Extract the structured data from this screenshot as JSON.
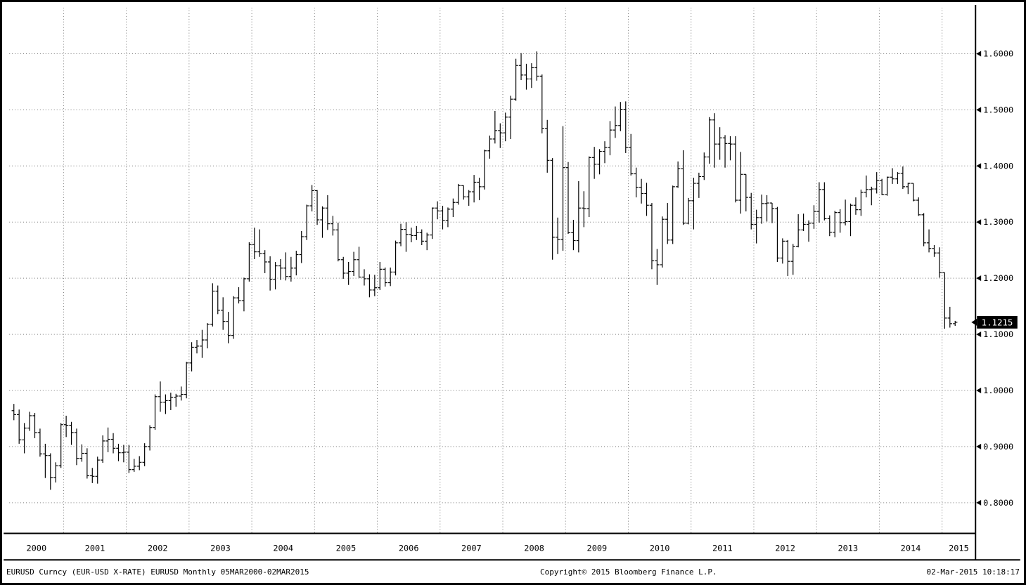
{
  "window": {
    "background": "#ffffff",
    "border_color": "#000000",
    "bar_color": "#000000",
    "grid_color": "#777777",
    "tag_bg": "#000000",
    "tag_fg": "#ffffff"
  },
  "footer": {
    "left": "EURUSD Curncy (EUR-USD X-RATE) EURUSD  Monthly 05MAR2000-02MAR2015",
    "center": "Copyright© 2015 Bloomberg Finance L.P.",
    "right": "02-Mar-2015 10:18:17"
  },
  "chart_data": {
    "type": "bar",
    "subtype": "ohlc-bar",
    "title": "EURUSD Curncy (EUR-USD X-RATE)",
    "frequency": "Monthly",
    "range_label": "05MAR2000-02MAR2015",
    "start": "2000-03",
    "end": "2015-03",
    "last_price": "1.1215",
    "last_price_value": 1.1215,
    "grid": "dotted",
    "legend_position": "none",
    "y_axis": {
      "side": "right",
      "ylim": [
        0.8,
        1.6
      ],
      "values": [
        1.6,
        1.5,
        1.4,
        1.3,
        1.2,
        1.1,
        1.0,
        0.9,
        0.8
      ],
      "labels": [
        "1.6000",
        "1.5000",
        "1.4000",
        "1.3000",
        "1.2000",
        "1.1000",
        "1.0000",
        "0.9000",
        "0.8000"
      ]
    },
    "x_axis": {
      "years": [
        "2000",
        "2001",
        "2002",
        "2003",
        "2004",
        "2005",
        "2006",
        "2007",
        "2008",
        "2009",
        "2010",
        "2011",
        "2012",
        "2013",
        "2014",
        "2015"
      ],
      "months_before_first_january_gridline": 10
    },
    "open_equals_previous_close": true,
    "first_open": 0.964,
    "high": [
      0.976,
      0.966,
      0.942,
      0.962,
      0.96,
      0.932,
      0.905,
      0.888,
      0.872,
      0.942,
      0.955,
      0.944,
      0.932,
      0.904,
      0.897,
      0.862,
      0.882,
      0.92,
      0.934,
      0.924,
      0.905,
      0.903,
      0.903,
      0.878,
      0.883,
      0.906,
      0.938,
      0.993,
      1.016,
      0.993,
      0.996,
      0.994,
      1.007,
      1.051,
      1.086,
      1.09,
      1.108,
      1.12,
      1.191,
      1.187,
      1.166,
      1.14,
      1.168,
      1.184,
      1.201,
      1.264,
      1.29,
      1.287,
      1.25,
      1.239,
      1.229,
      1.234,
      1.246,
      1.238,
      1.249,
      1.284,
      1.331,
      1.366,
      1.357,
      1.328,
      1.348,
      1.311,
      1.299,
      1.238,
      1.229,
      1.247,
      1.256,
      1.216,
      1.207,
      1.206,
      1.229,
      1.219,
      1.219,
      1.267,
      1.297,
      1.3,
      1.29,
      1.293,
      1.287,
      1.281,
      1.326,
      1.337,
      1.329,
      1.326,
      1.342,
      1.368,
      1.365,
      1.357,
      1.384,
      1.379,
      1.429,
      1.454,
      1.498,
      1.476,
      1.495,
      1.525,
      1.591,
      1.601,
      1.582,
      1.583,
      1.604,
      1.563,
      1.482,
      1.414,
      1.308,
      1.471,
      1.407,
      1.304,
      1.373,
      1.355,
      1.417,
      1.434,
      1.43,
      1.444,
      1.48,
      1.506,
      1.514,
      1.515,
      1.457,
      1.397,
      1.377,
      1.37,
      1.334,
      1.252,
      1.31,
      1.334,
      1.365,
      1.408,
      1.428,
      1.343,
      1.379,
      1.388,
      1.424,
      1.487,
      1.494,
      1.469,
      1.455,
      1.453,
      1.453,
      1.425,
      1.385,
      1.352,
      1.322,
      1.349,
      1.348,
      1.334,
      1.327,
      1.271,
      1.268,
      1.261,
      1.314,
      1.315,
      1.303,
      1.33,
      1.371,
      1.371,
      1.312,
      1.32,
      1.323,
      1.34,
      1.333,
      1.344,
      1.358,
      1.383,
      1.363,
      1.389,
      1.377,
      1.381,
      1.396,
      1.389,
      1.399,
      1.37,
      1.369,
      1.344,
      1.316,
      1.287,
      1.259,
      1.255,
      1.21,
      1.149,
      1.124
    ],
    "low": [
      0.947,
      0.905,
      0.888,
      0.928,
      0.915,
      0.882,
      0.844,
      0.823,
      0.836,
      0.862,
      0.917,
      0.903,
      0.867,
      0.873,
      0.843,
      0.835,
      0.834,
      0.871,
      0.89,
      0.888,
      0.874,
      0.872,
      0.853,
      0.855,
      0.858,
      0.865,
      0.893,
      0.93,
      0.962,
      0.958,
      0.965,
      0.971,
      0.982,
      0.986,
      1.034,
      1.066,
      1.058,
      1.075,
      1.114,
      1.136,
      1.108,
      1.084,
      1.092,
      1.155,
      1.141,
      1.194,
      1.234,
      1.238,
      1.209,
      1.178,
      1.18,
      1.197,
      1.196,
      1.194,
      1.205,
      1.227,
      1.268,
      1.319,
      1.295,
      1.272,
      1.286,
      1.276,
      1.23,
      1.199,
      1.188,
      1.204,
      1.201,
      1.187,
      1.166,
      1.168,
      1.179,
      1.185,
      1.186,
      1.205,
      1.257,
      1.247,
      1.264,
      1.268,
      1.259,
      1.25,
      1.27,
      1.305,
      1.287,
      1.291,
      1.309,
      1.331,
      1.34,
      1.329,
      1.335,
      1.339,
      1.358,
      1.413,
      1.44,
      1.432,
      1.444,
      1.448,
      1.516,
      1.553,
      1.536,
      1.539,
      1.552,
      1.458,
      1.388,
      1.233,
      1.243,
      1.249,
      1.279,
      1.25,
      1.246,
      1.291,
      1.309,
      1.377,
      1.385,
      1.405,
      1.419,
      1.45,
      1.462,
      1.423,
      1.383,
      1.344,
      1.333,
      1.311,
      1.216,
      1.188,
      1.219,
      1.261,
      1.261,
      1.361,
      1.295,
      1.296,
      1.287,
      1.343,
      1.375,
      1.404,
      1.397,
      1.411,
      1.397,
      1.41,
      1.335,
      1.315,
      1.319,
      1.287,
      1.262,
      1.297,
      1.301,
      1.298,
      1.229,
      1.226,
      1.204,
      1.206,
      1.255,
      1.284,
      1.265,
      1.288,
      1.299,
      1.303,
      1.275,
      1.273,
      1.281,
      1.294,
      1.275,
      1.313,
      1.311,
      1.344,
      1.33,
      1.351,
      1.348,
      1.347,
      1.368,
      1.368,
      1.359,
      1.35,
      1.337,
      1.311,
      1.257,
      1.246,
      1.238,
      1.201,
      1.11,
      1.112,
      1.115
    ],
    "close": [
      0.957,
      0.912,
      0.933,
      0.955,
      0.925,
      0.887,
      0.884,
      0.845,
      0.866,
      0.939,
      0.938,
      0.925,
      0.879,
      0.888,
      0.848,
      0.847,
      0.876,
      0.91,
      0.913,
      0.897,
      0.889,
      0.89,
      0.859,
      0.865,
      0.872,
      0.9,
      0.934,
      0.989,
      0.979,
      0.982,
      0.988,
      0.99,
      0.993,
      1.049,
      1.077,
      1.079,
      1.09,
      1.118,
      1.177,
      1.143,
      1.123,
      1.098,
      1.165,
      1.16,
      1.199,
      1.26,
      1.247,
      1.244,
      1.229,
      1.198,
      1.222,
      1.218,
      1.203,
      1.218,
      1.242,
      1.274,
      1.329,
      1.356,
      1.304,
      1.325,
      1.297,
      1.286,
      1.233,
      1.209,
      1.212,
      1.233,
      1.202,
      1.199,
      1.179,
      1.183,
      1.216,
      1.192,
      1.211,
      1.263,
      1.287,
      1.278,
      1.276,
      1.281,
      1.266,
      1.277,
      1.325,
      1.32,
      1.303,
      1.323,
      1.335,
      1.365,
      1.345,
      1.354,
      1.371,
      1.363,
      1.427,
      1.448,
      1.463,
      1.459,
      1.487,
      1.519,
      1.579,
      1.562,
      1.555,
      1.575,
      1.56,
      1.467,
      1.41,
      1.273,
      1.269,
      1.397,
      1.281,
      1.267,
      1.325,
      1.324,
      1.415,
      1.403,
      1.426,
      1.433,
      1.464,
      1.472,
      1.501,
      1.433,
      1.386,
      1.362,
      1.351,
      1.33,
      1.231,
      1.224,
      1.305,
      1.268,
      1.363,
      1.395,
      1.298,
      1.338,
      1.369,
      1.381,
      1.416,
      1.482,
      1.439,
      1.45,
      1.44,
      1.439,
      1.339,
      1.385,
      1.344,
      1.296,
      1.308,
      1.333,
      1.334,
      1.324,
      1.236,
      1.266,
      1.23,
      1.257,
      1.286,
      1.296,
      1.298,
      1.319,
      1.358,
      1.306,
      1.282,
      1.317,
      1.299,
      1.301,
      1.33,
      1.322,
      1.353,
      1.358,
      1.359,
      1.374,
      1.349,
      1.38,
      1.377,
      1.387,
      1.363,
      1.369,
      1.339,
      1.313,
      1.263,
      1.253,
      1.245,
      1.21,
      1.129,
      1.119,
      1.1215
    ]
  }
}
